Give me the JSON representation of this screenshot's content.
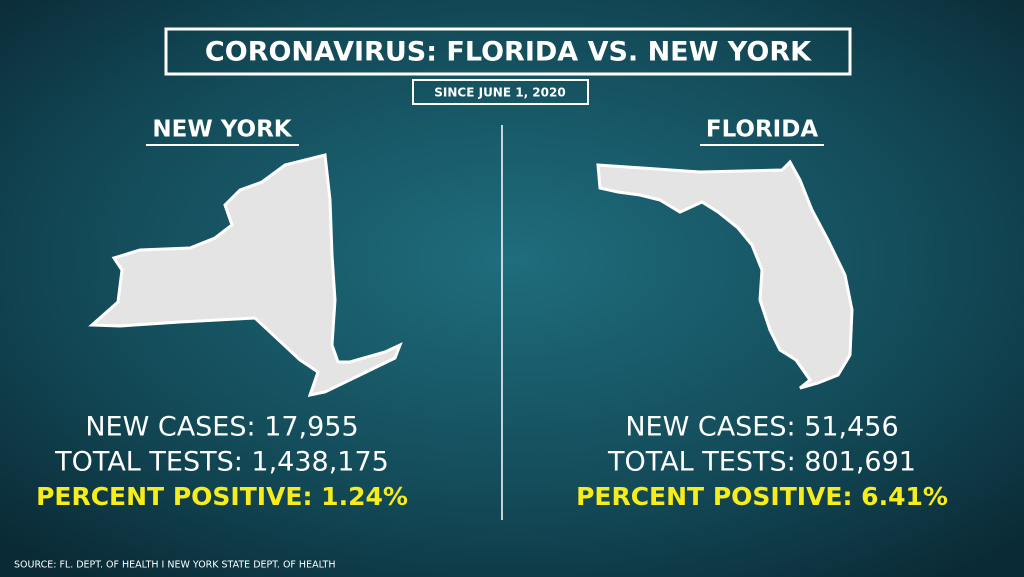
{
  "header": {
    "title": "CORONAVIRUS: FLORIDA VS. NEW YORK",
    "subtitle": "SINCE JUNE 1, 2020"
  },
  "panels": [
    {
      "state": "NEW YORK",
      "lines": [
        "NEW CASES: 17,955",
        "TOTAL TESTS: 1,438,175"
      ],
      "highlight": "PERCENT POSITIVE: 1.24%"
    },
    {
      "state": "FLORIDA",
      "lines": [
        "NEW CASES: 51,456",
        "TOTAL TESTS: 801,691"
      ],
      "highlight": "PERCENT POSITIVE: 6.41%"
    }
  ],
  "source": "SOURCE: FL. DEPT. OF HEALTH I NEW YORK STATE DEPT. OF HEALTH"
}
